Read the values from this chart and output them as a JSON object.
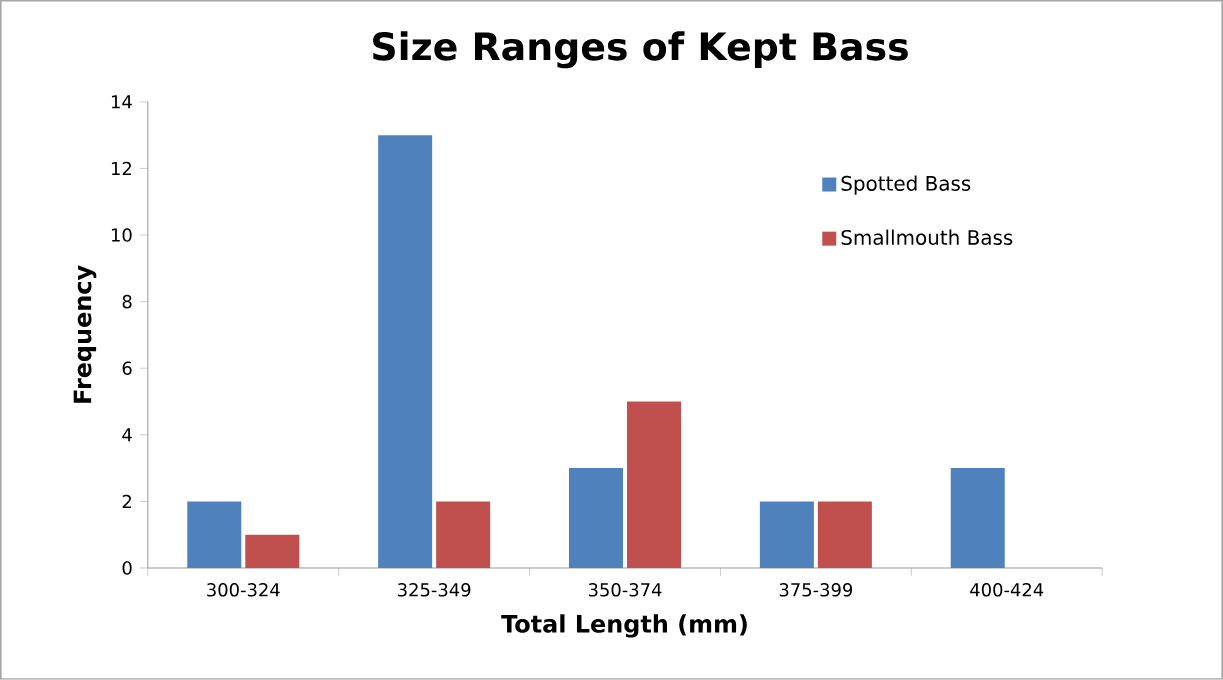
{
  "chart_data": {
    "type": "bar",
    "title": "Size Ranges of Kept Bass",
    "xlabel": "Total Length (mm)",
    "ylabel": "Frequency",
    "categories": [
      "300-324",
      "325-349",
      "350-374",
      "375-399",
      "400-424"
    ],
    "series": [
      {
        "name": "Spotted Bass",
        "color": "#4f81bd",
        "values": [
          2,
          13,
          3,
          2,
          3
        ]
      },
      {
        "name": "Smallmouth Bass",
        "color": "#c0504d",
        "values": [
          1,
          2,
          5,
          2,
          0
        ]
      }
    ],
    "ylim": [
      0,
      14
    ],
    "yticks": [
      0,
      2,
      4,
      6,
      8,
      10,
      12,
      14
    ],
    "legend": "top right"
  }
}
